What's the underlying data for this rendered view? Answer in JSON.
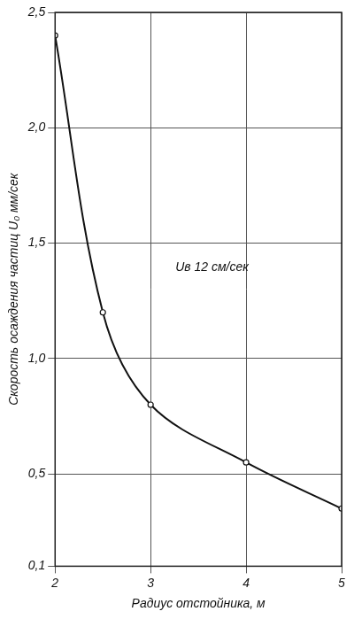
{
  "chart_data": {
    "type": "line",
    "x_label": "Радиус отстойника, м",
    "y_label": "Скорость осаждения частиц U₀ мм/сек",
    "annotation": "Uв 12 см/сек",
    "x": [
      2,
      2.5,
      3,
      4,
      5
    ],
    "values": [
      2.4,
      1.2,
      0.8,
      0.55,
      0.35
    ],
    "color": "#111111",
    "marker": "circle",
    "line_style": "solid",
    "xlim": [
      2,
      5
    ],
    "xticks": [
      2,
      3,
      4,
      5
    ],
    "ylim": [
      0.1,
      2.5
    ],
    "yticks": [
      {
        "value": 0.1,
        "label": "0,1"
      },
      {
        "value": 0.5,
        "label": "0,5"
      },
      {
        "value": 1.0,
        "label": "1,0"
      },
      {
        "value": 1.5,
        "label": "1,5"
      },
      {
        "value": 2.0,
        "label": "2,0"
      },
      {
        "value": 2.5,
        "label": "2,5"
      }
    ],
    "grid": true
  }
}
